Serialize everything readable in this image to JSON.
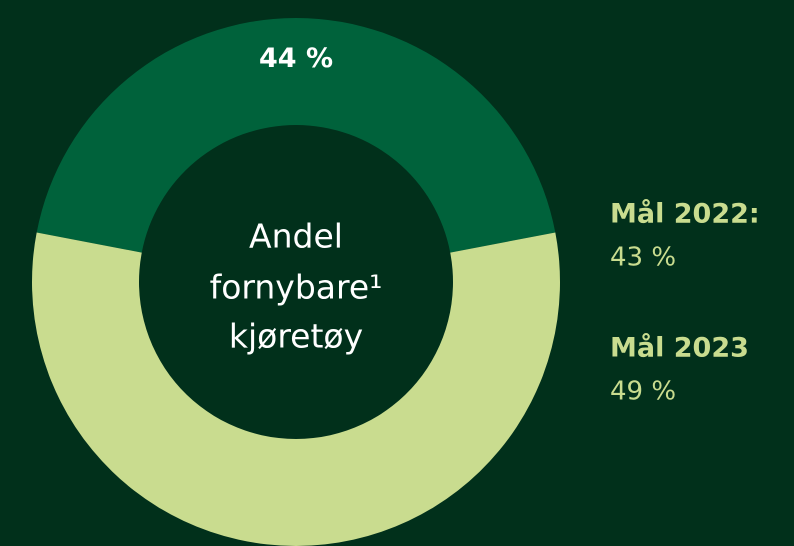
{
  "chart_data": {
    "type": "donut",
    "values": [
      44,
      56
    ],
    "value_labels": [
      "44 %",
      null
    ],
    "colors": [
      "#00623b",
      "#c9dc8f"
    ],
    "center_label": [
      "Andel",
      "fornybare¹",
      "kjøretøy"
    ],
    "annotations": [
      {
        "title": "Mål 2022:",
        "text": "43 %"
      },
      {
        "title": "Mål 2023",
        "text": "49 %"
      }
    ]
  }
}
